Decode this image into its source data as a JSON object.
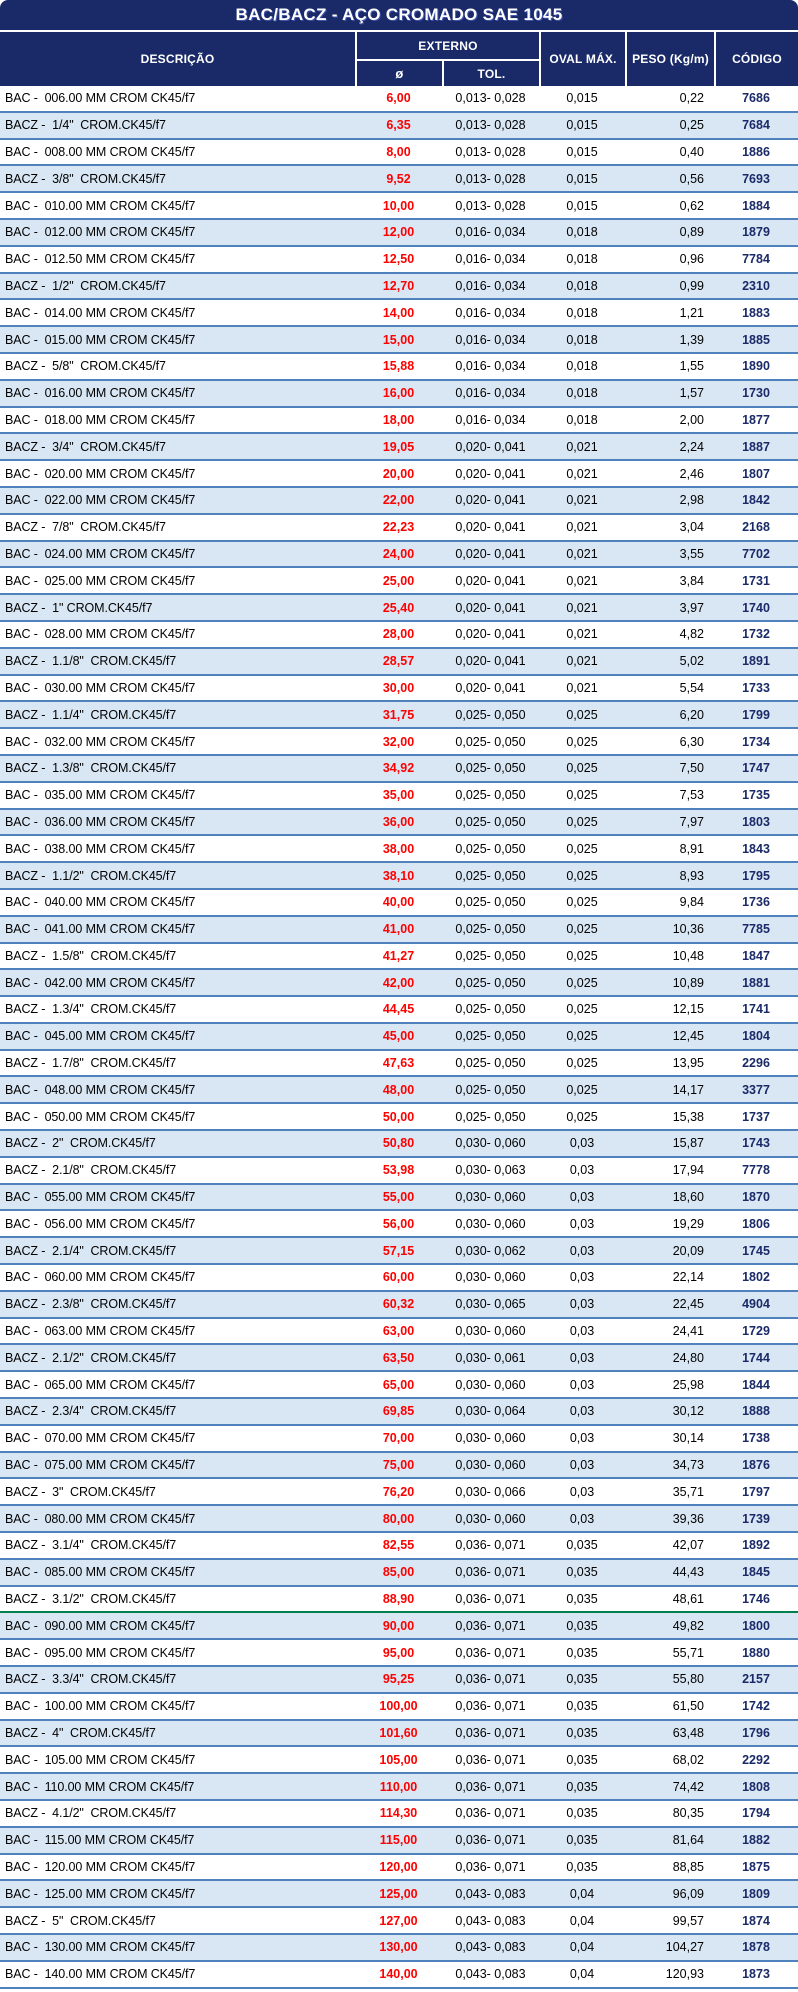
{
  "title": "BAC/BACZ - AÇO CROMADO SAE 1045",
  "header": {
    "descricao": "DESCRIÇÃO",
    "externo": "EXTERNO",
    "diametro": "ø",
    "tol": "TOL.",
    "oval": "OVAL MÁX.",
    "peso": "PESO (Kg/m)",
    "codigo": "CÓDIGO"
  },
  "colors": {
    "navy": "#1a2a68",
    "row_alt": "#d9e7f5",
    "row_separator": "#4f81bd",
    "green_separator": "#00804d",
    "diameter_red": "#ff0000",
    "code_navy": "#1a2a68"
  },
  "row_fields": [
    "descricao",
    "diametro",
    "tol",
    "oval",
    "peso",
    "codigo"
  ],
  "green_separator_after_index": 56,
  "rows": [
    [
      "BAC -  006.00 MM CROM CK45/f7",
      "6,00",
      "0,013- 0,028",
      "0,015",
      "0,22",
      "7686"
    ],
    [
      "BACZ -  1/4\"  CROM.CK45/f7",
      "6,35",
      "0,013- 0,028",
      "0,015",
      "0,25",
      "7684"
    ],
    [
      "BAC -  008.00 MM CROM CK45/f7",
      "8,00",
      "0,013- 0,028",
      "0,015",
      "0,40",
      "1886"
    ],
    [
      "BACZ -  3/8\"  CROM.CK45/f7",
      "9,52",
      "0,013- 0,028",
      "0,015",
      "0,56",
      "7693"
    ],
    [
      "BAC -  010.00 MM CROM CK45/f7",
      "10,00",
      "0,013- 0,028",
      "0,015",
      "0,62",
      "1884"
    ],
    [
      "BAC -  012.00 MM CROM CK45/f7",
      "12,00",
      "0,016- 0,034",
      "0,018",
      "0,89",
      "1879"
    ],
    [
      "BAC -  012.50 MM CROM CK45/f7",
      "12,50",
      "0,016- 0,034",
      "0,018",
      "0,96",
      "7784"
    ],
    [
      "BACZ -  1/2\"  CROM.CK45/f7",
      "12,70",
      "0,016- 0,034",
      "0,018",
      "0,99",
      "2310"
    ],
    [
      "BAC -  014.00 MM CROM CK45/f7",
      "14,00",
      "0,016- 0,034",
      "0,018",
      "1,21",
      "1883"
    ],
    [
      "BAC -  015.00 MM CROM CK45/f7",
      "15,00",
      "0,016- 0,034",
      "0,018",
      "1,39",
      "1885"
    ],
    [
      "BACZ -  5/8\"  CROM.CK45/f7",
      "15,88",
      "0,016- 0,034",
      "0,018",
      "1,55",
      "1890"
    ],
    [
      "BAC -  016.00 MM CROM CK45/f7",
      "16,00",
      "0,016- 0,034",
      "0,018",
      "1,57",
      "1730"
    ],
    [
      "BAC -  018.00 MM CROM CK45/f7",
      "18,00",
      "0,016- 0,034",
      "0,018",
      "2,00",
      "1877"
    ],
    [
      "BACZ -  3/4\"  CROM.CK45/f7",
      "19,05",
      "0,020- 0,041",
      "0,021",
      "2,24",
      "1887"
    ],
    [
      "BAC -  020.00 MM CROM CK45/f7",
      "20,00",
      "0,020- 0,041",
      "0,021",
      "2,46",
      "1807"
    ],
    [
      "BAC -  022.00 MM CROM CK45/f7",
      "22,00",
      "0,020- 0,041",
      "0,021",
      "2,98",
      "1842"
    ],
    [
      "BACZ -  7/8\"  CROM.CK45/f7",
      "22,23",
      "0,020- 0,041",
      "0,021",
      "3,04",
      "2168"
    ],
    [
      "BAC -  024.00 MM CROM CK45/f7",
      "24,00",
      "0,020- 0,041",
      "0,021",
      "3,55",
      "7702"
    ],
    [
      "BAC -  025.00 MM CROM CK45/f7",
      "25,00",
      "0,020- 0,041",
      "0,021",
      "3,84",
      "1731"
    ],
    [
      "BACZ -  1\" CROM.CK45/f7",
      "25,40",
      "0,020- 0,041",
      "0,021",
      "3,97",
      "1740"
    ],
    [
      "BAC -  028.00 MM CROM CK45/f7",
      "28,00",
      "0,020- 0,041",
      "0,021",
      "4,82",
      "1732"
    ],
    [
      "BACZ -  1.1/8\"  CROM.CK45/f7",
      "28,57",
      "0,020- 0,041",
      "0,021",
      "5,02",
      "1891"
    ],
    [
      "BAC -  030.00 MM CROM CK45/f7",
      "30,00",
      "0,020- 0,041",
      "0,021",
      "5,54",
      "1733"
    ],
    [
      "BACZ -  1.1/4\"  CROM.CK45/f7",
      "31,75",
      "0,025- 0,050",
      "0,025",
      "6,20",
      "1799"
    ],
    [
      "BAC -  032.00 MM CROM CK45/f7",
      "32,00",
      "0,025- 0,050",
      "0,025",
      "6,30",
      "1734"
    ],
    [
      "BACZ -  1.3/8\"  CROM.CK45/f7",
      "34,92",
      "0,025- 0,050",
      "0,025",
      "7,50",
      "1747"
    ],
    [
      "BAC -  035.00 MM CROM CK45/f7",
      "35,00",
      "0,025- 0,050",
      "0,025",
      "7,53",
      "1735"
    ],
    [
      "BAC -  036.00 MM CROM CK45/f7",
      "36,00",
      "0,025- 0,050",
      "0,025",
      "7,97",
      "1803"
    ],
    [
      "BAC -  038.00 MM CROM CK45/f7",
      "38,00",
      "0,025- 0,050",
      "0,025",
      "8,91",
      "1843"
    ],
    [
      "BACZ -  1.1/2\"  CROM.CK45/f7",
      "38,10",
      "0,025- 0,050",
      "0,025",
      "8,93",
      "1795"
    ],
    [
      "BAC -  040.00 MM CROM CK45/f7",
      "40,00",
      "0,025- 0,050",
      "0,025",
      "9,84",
      "1736"
    ],
    [
      "BAC -  041.00 MM CROM CK45/f7",
      "41,00",
      "0,025- 0,050",
      "0,025",
      "10,36",
      "7785"
    ],
    [
      "BACZ -  1.5/8\"  CROM.CK45/f7",
      "41,27",
      "0,025- 0,050",
      "0,025",
      "10,48",
      "1847"
    ],
    [
      "BAC -  042.00 MM CROM CK45/f7",
      "42,00",
      "0,025- 0,050",
      "0,025",
      "10,89",
      "1881"
    ],
    [
      "BACZ -  1.3/4\"  CROM.CK45/f7",
      "44,45",
      "0,025- 0,050",
      "0,025",
      "12,15",
      "1741"
    ],
    [
      "BAC -  045.00 MM CROM CK45/f7",
      "45,00",
      "0,025- 0,050",
      "0,025",
      "12,45",
      "1804"
    ],
    [
      "BACZ -  1.7/8\"  CROM.CK45/f7",
      "47,63",
      "0,025- 0,050",
      "0,025",
      "13,95",
      "2296"
    ],
    [
      "BAC -  048.00 MM CROM CK45/f7",
      "48,00",
      "0,025- 0,050",
      "0,025",
      "14,17",
      "3377"
    ],
    [
      "BAC -  050.00 MM CROM CK45/f7",
      "50,00",
      "0,025- 0,050",
      "0,025",
      "15,38",
      "1737"
    ],
    [
      "BACZ -  2\"  CROM.CK45/f7",
      "50,80",
      "0,030- 0,060",
      "0,03",
      "15,87",
      "1743"
    ],
    [
      "BACZ -  2.1/8\"  CROM.CK45/f7",
      "53,98",
      "0,030- 0,063",
      "0,03",
      "17,94",
      "7778"
    ],
    [
      "BAC -  055.00 MM CROM CK45/f7",
      "55,00",
      "0,030- 0,060",
      "0,03",
      "18,60",
      "1870"
    ],
    [
      "BAC -  056.00 MM CROM CK45/f7",
      "56,00",
      "0,030- 0,060",
      "0,03",
      "19,29",
      "1806"
    ],
    [
      "BACZ -  2.1/4\"  CROM.CK45/f7",
      "57,15",
      "0,030- 0,062",
      "0,03",
      "20,09",
      "1745"
    ],
    [
      "BAC -  060.00 MM CROM CK45/f7",
      "60,00",
      "0,030- 0,060",
      "0,03",
      "22,14",
      "1802"
    ],
    [
      "BACZ -  2.3/8\"  CROM.CK45/f7",
      "60,32",
      "0,030- 0,065",
      "0,03",
      "22,45",
      "4904"
    ],
    [
      "BAC -  063.00 MM CROM CK45/f7",
      "63,00",
      "0,030- 0,060",
      "0,03",
      "24,41",
      "1729"
    ],
    [
      "BACZ -  2.1/2\"  CROM.CK45/f7",
      "63,50",
      "0,030- 0,061",
      "0,03",
      "24,80",
      "1744"
    ],
    [
      "BAC -  065.00 MM CROM CK45/f7",
      "65,00",
      "0,030- 0,060",
      "0,03",
      "25,98",
      "1844"
    ],
    [
      "BACZ -  2.3/4\"  CROM.CK45/f7",
      "69,85",
      "0,030- 0,064",
      "0,03",
      "30,12",
      "1888"
    ],
    [
      "BAC -  070.00 MM CROM CK45/f7",
      "70,00",
      "0,030- 0,060",
      "0,03",
      "30,14",
      "1738"
    ],
    [
      "BAC -  075.00 MM CROM CK45/f7",
      "75,00",
      "0,030- 0,060",
      "0,03",
      "34,73",
      "1876"
    ],
    [
      "BACZ -  3\"  CROM.CK45/f7",
      "76,20",
      "0,030- 0,066",
      "0,03",
      "35,71",
      "1797"
    ],
    [
      "BAC -  080.00 MM CROM CK45/f7",
      "80,00",
      "0,030- 0,060",
      "0,03",
      "39,36",
      "1739"
    ],
    [
      "BACZ -  3.1/4\"  CROM.CK45/f7",
      "82,55",
      "0,036- 0,071",
      "0,035",
      "42,07",
      "1892"
    ],
    [
      "BAC -  085.00 MM CROM CK45/f7",
      "85,00",
      "0,036- 0,071",
      "0,035",
      "44,43",
      "1845"
    ],
    [
      "BACZ -  3.1/2\"  CROM.CK45/f7",
      "88,90",
      "0,036- 0,071",
      "0,035",
      "48,61",
      "1746"
    ],
    [
      "BAC -  090.00 MM CROM CK45/f7",
      "90,00",
      "0,036- 0,071",
      "0,035",
      "49,82",
      "1800"
    ],
    [
      "BAC -  095.00 MM CROM CK45/f7",
      "95,00",
      "0,036- 0,071",
      "0,035",
      "55,71",
      "1880"
    ],
    [
      "BACZ -  3.3/4\"  CROM.CK45/f7",
      "95,25",
      "0,036- 0,071",
      "0,035",
      "55,80",
      "2157"
    ],
    [
      "BAC -  100.00 MM CROM CK45/f7",
      "100,00",
      "0,036- 0,071",
      "0,035",
      "61,50",
      "1742"
    ],
    [
      "BACZ -  4\"  CROM.CK45/f7",
      "101,60",
      "0,036- 0,071",
      "0,035",
      "63,48",
      "1796"
    ],
    [
      "BAC -  105.00 MM CROM CK45/f7",
      "105,00",
      "0,036- 0,071",
      "0,035",
      "68,02",
      "2292"
    ],
    [
      "BAC -  110.00 MM CROM CK45/f7",
      "110,00",
      "0,036- 0,071",
      "0,035",
      "74,42",
      "1808"
    ],
    [
      "BACZ -  4.1/2\"  CROM.CK45/f7",
      "114,30",
      "0,036- 0,071",
      "0,035",
      "80,35",
      "1794"
    ],
    [
      "BAC -  115.00 MM CROM CK45/f7",
      "115,00",
      "0,036- 0,071",
      "0,035",
      "81,64",
      "1882"
    ],
    [
      "BAC -  120.00 MM CROM CK45/f7",
      "120,00",
      "0,036- 0,071",
      "0,035",
      "88,85",
      "1875"
    ],
    [
      "BAC -  125.00 MM CROM CK45/f7",
      "125,00",
      "0,043- 0,083",
      "0,04",
      "96,09",
      "1809"
    ],
    [
      "BACZ -  5\"  CROM.CK45/f7",
      "127,00",
      "0,043- 0,083",
      "0,04",
      "99,57",
      "1874"
    ],
    [
      "BAC -  130.00 MM CROM CK45/f7",
      "130,00",
      "0,043- 0,083",
      "0,04",
      "104,27",
      "1878"
    ],
    [
      "BAC -  140.00 MM CROM CK45/f7",
      "140,00",
      "0,043- 0,083",
      "0,04",
      "120,93",
      "1873"
    ]
  ]
}
